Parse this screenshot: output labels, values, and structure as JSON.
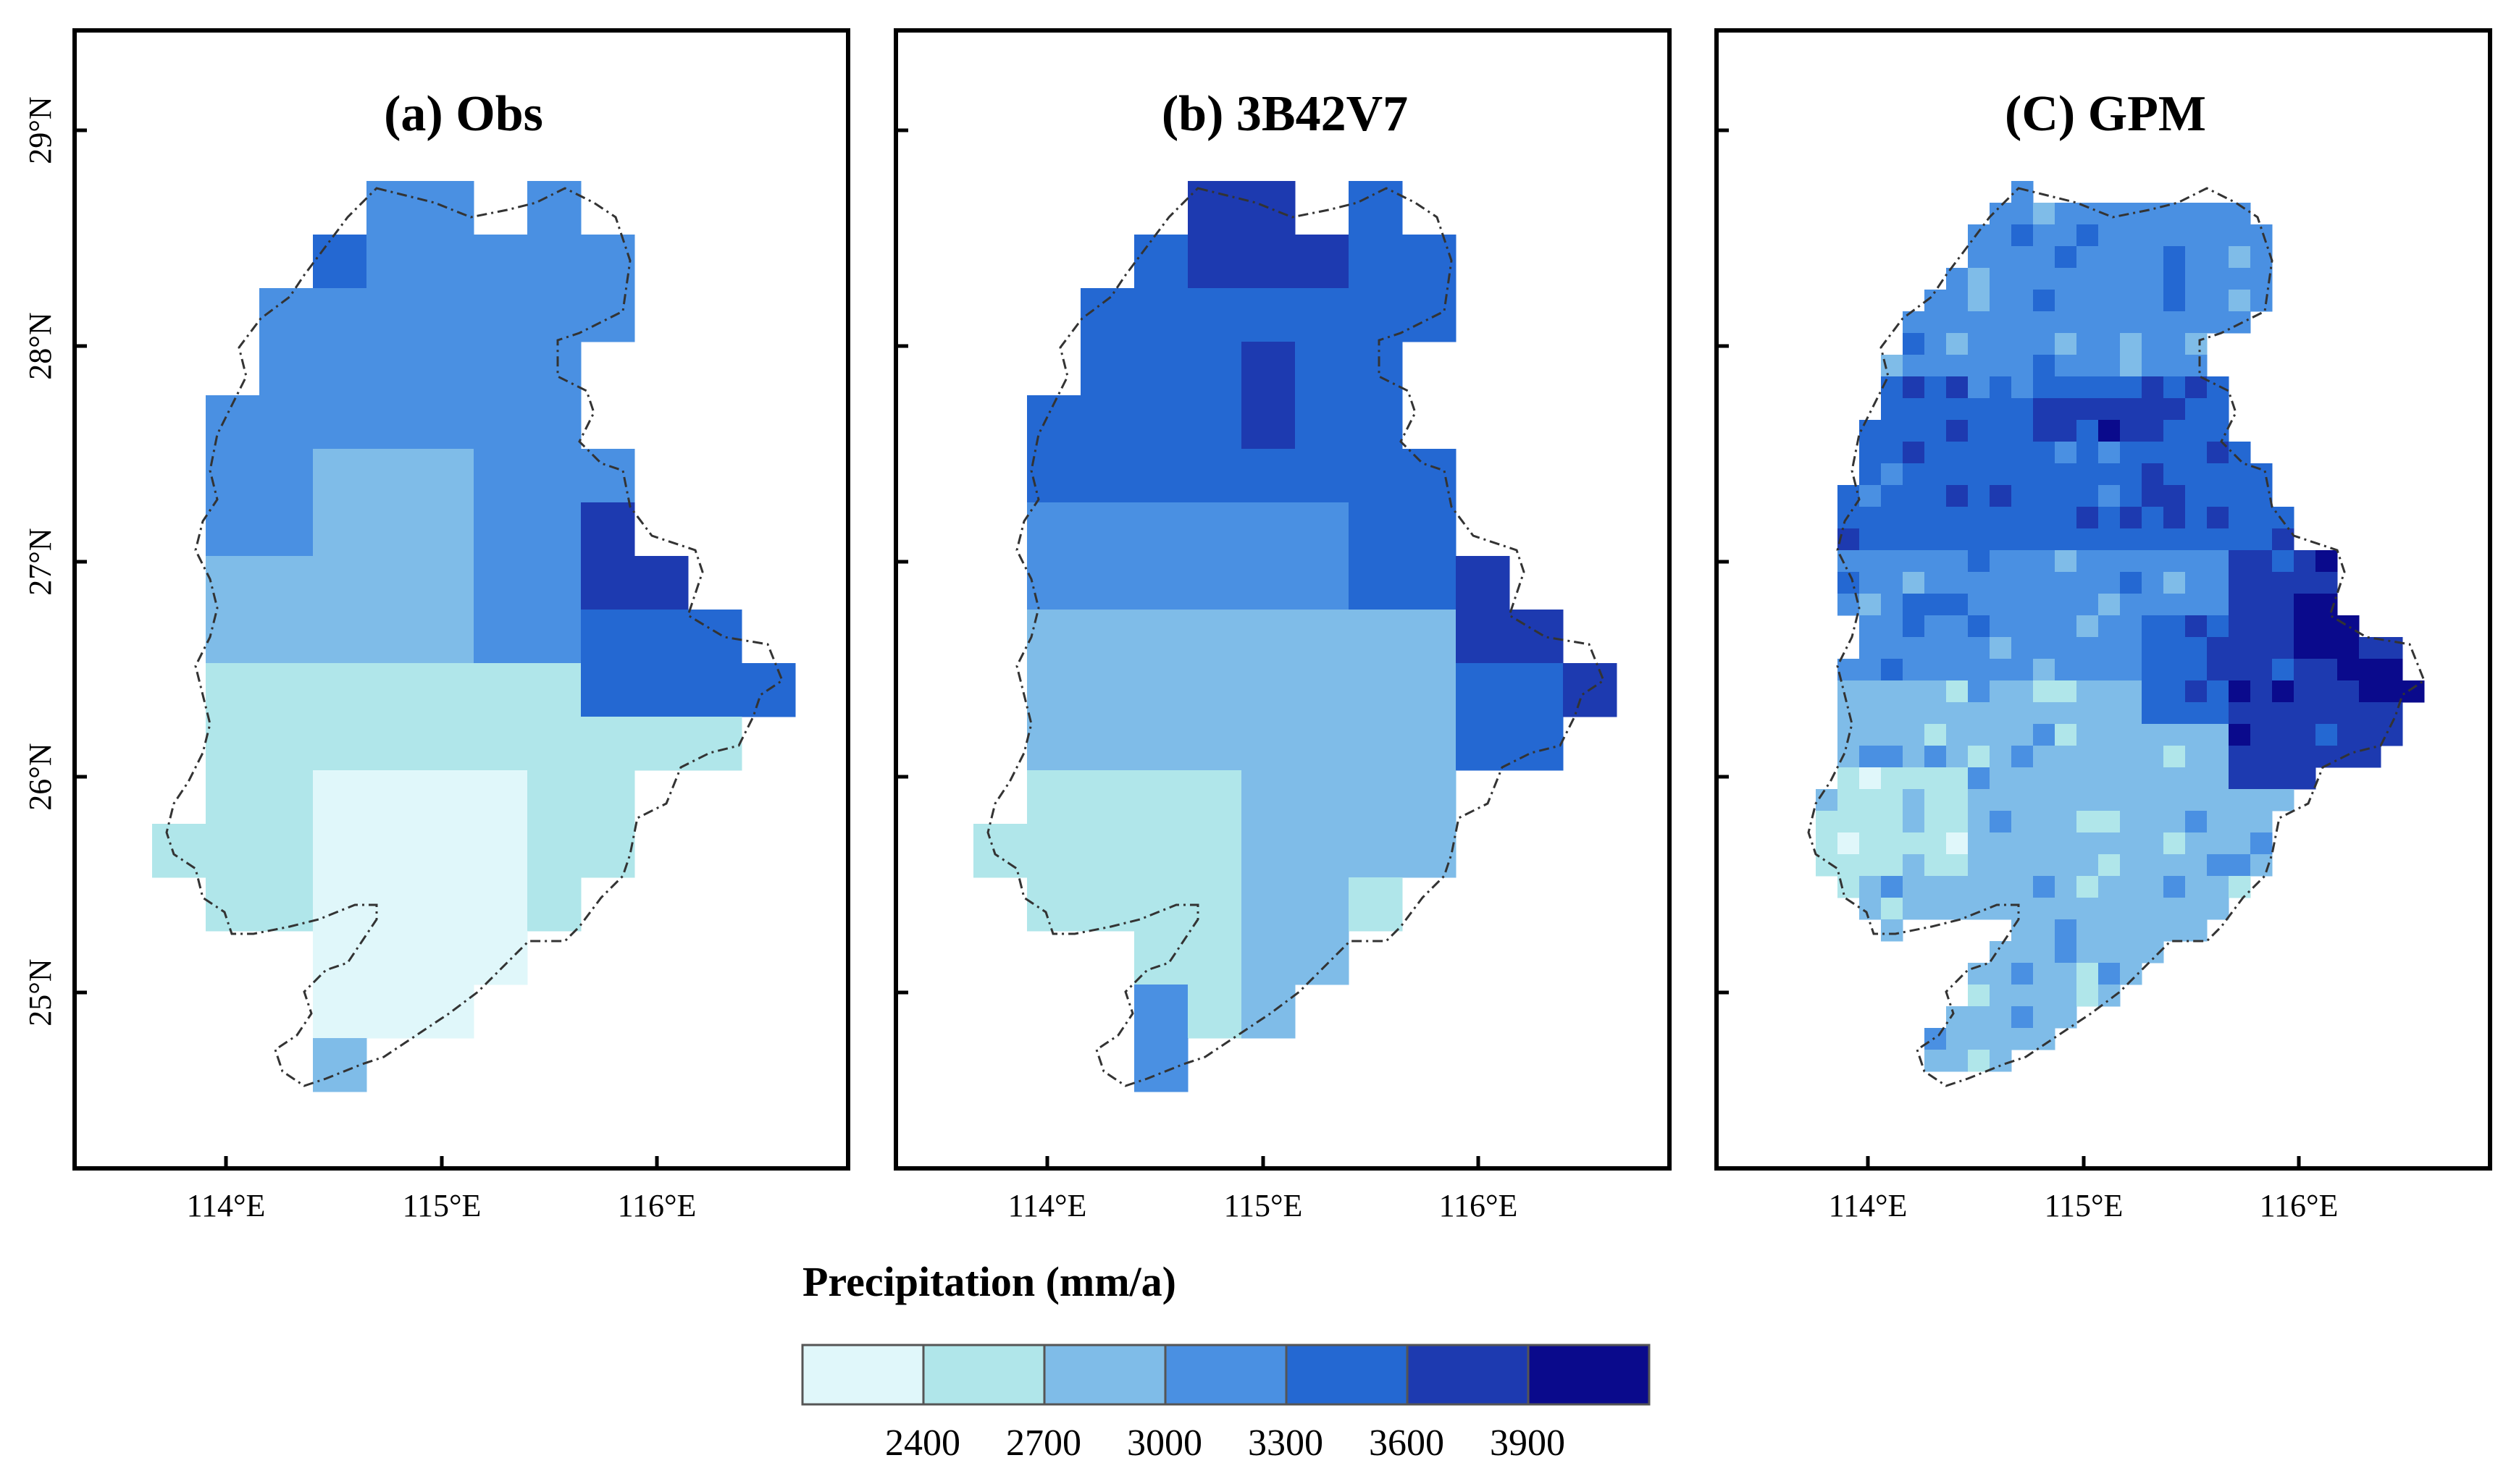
{
  "panels": [
    {
      "id": "obs",
      "title": "(a) Obs"
    },
    {
      "id": "trmm",
      "title": "(b) 3B42V7"
    },
    {
      "id": "gpm",
      "title": "(C) GPM"
    }
  ],
  "axes": {
    "lon_labels": [
      "114°E",
      "115°E",
      "116°E"
    ],
    "lat_labels": [
      "29°N",
      "28°N",
      "27°N",
      "26°N",
      "25°N"
    ]
  },
  "legend": {
    "title": "Precipitation (mm/a)",
    "ticks": [
      "2400",
      "2700",
      "3000",
      "3300",
      "3600",
      "3900"
    ],
    "colors": [
      "#e0f7fa",
      "#b0e6ea",
      "#7fbce8",
      "#4a90e2",
      "#2468d2",
      "#1d3ab0",
      "#0a0a8c"
    ]
  }
}
